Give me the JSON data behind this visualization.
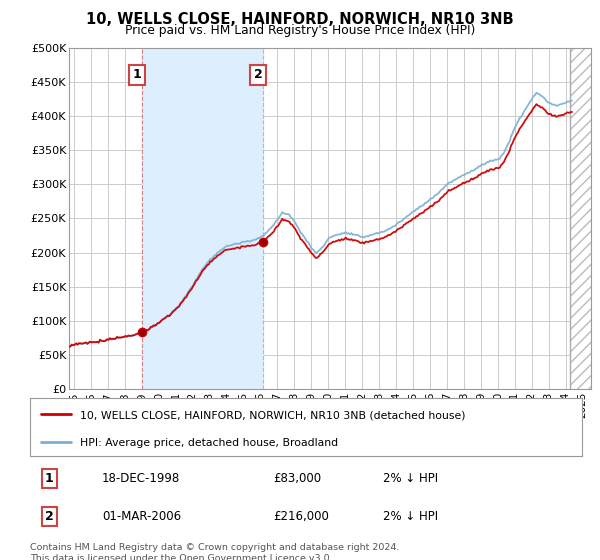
{
  "title": "10, WELLS CLOSE, HAINFORD, NORWICH, NR10 3NB",
  "subtitle": "Price paid vs. HM Land Registry's House Price Index (HPI)",
  "property_label": "10, WELLS CLOSE, HAINFORD, NORWICH, NR10 3NB (detached house)",
  "hpi_label": "HPI: Average price, detached house, Broadland",
  "property_color": "#cc0000",
  "hpi_color": "#7aafd4",
  "shade_color": "#ddeeff",
  "background_color": "#ffffff",
  "plot_bg_color": "#ffffff",
  "grid_color": "#cccccc",
  "ylim": [
    0,
    500000
  ],
  "yticks": [
    0,
    50000,
    100000,
    150000,
    200000,
    250000,
    300000,
    350000,
    400000,
    450000,
    500000
  ],
  "ytick_labels": [
    "£0",
    "£50K",
    "£100K",
    "£150K",
    "£200K",
    "£250K",
    "£300K",
    "£350K",
    "£400K",
    "£450K",
    "£500K"
  ],
  "sale1_t": 1999.0,
  "sale1_price": 83000,
  "sale2_t": 2006.17,
  "sale2_price": 216000,
  "footnote": "Contains HM Land Registry data © Crown copyright and database right 2024.\nThis data is licensed under the Open Government Licence v3.0.",
  "xlim_start": 1994.7,
  "xlim_end": 2025.5,
  "future_start": 2024.25,
  "xticks": [
    1995,
    1996,
    1997,
    1998,
    1999,
    2000,
    2001,
    2002,
    2003,
    2004,
    2005,
    2006,
    2007,
    2008,
    2009,
    2010,
    2011,
    2012,
    2013,
    2014,
    2015,
    2016,
    2017,
    2018,
    2019,
    2020,
    2021,
    2022,
    2023,
    2024,
    2025
  ]
}
